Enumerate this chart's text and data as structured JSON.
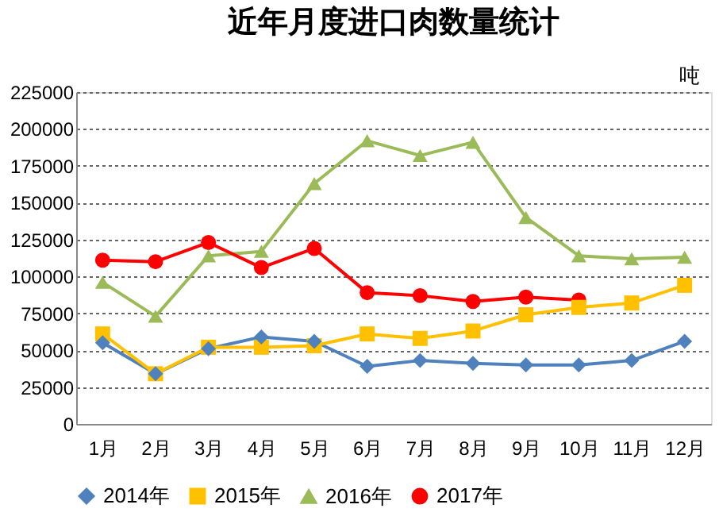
{
  "chart_data": {
    "type": "line",
    "title": "近年月度进口肉数量统计",
    "ylabel": "吨",
    "categories": [
      "1月",
      "2月",
      "3月",
      "4月",
      "5月",
      "6月",
      "7月",
      "8月",
      "9月",
      "10月",
      "11月",
      "12月"
    ],
    "series": [
      {
        "name": "2014年",
        "color": "#4f81bd",
        "marker": "diamond",
        "values": [
          55000,
          34000,
          51000,
          59000,
          56000,
          39000,
          43000,
          41000,
          40000,
          40000,
          43000,
          56000
        ]
      },
      {
        "name": "2015年",
        "color": "#ffc000",
        "marker": "square",
        "values": [
          61000,
          34000,
          52000,
          52000,
          53000,
          61000,
          58000,
          63000,
          74000,
          79000,
          82000,
          94000
        ]
      },
      {
        "name": "2016年",
        "color": "#9bbb59",
        "marker": "triangle",
        "values": [
          96000,
          73000,
          114000,
          117000,
          163000,
          192000,
          182000,
          191000,
          140000,
          114000,
          112000,
          113000
        ]
      },
      {
        "name": "2017年",
        "color": "#ff0000",
        "marker": "circle",
        "values": [
          111000,
          110000,
          123000,
          106000,
          119000,
          89000,
          87000,
          83000,
          86000,
          84000,
          null,
          null
        ]
      }
    ],
    "ylim": [
      0,
      225000
    ],
    "yticks": [
      0,
      25000,
      50000,
      75000,
      100000,
      125000,
      150000,
      175000,
      200000,
      225000
    ],
    "grid": "y",
    "legend": "bottom",
    "line_style": "solid"
  }
}
